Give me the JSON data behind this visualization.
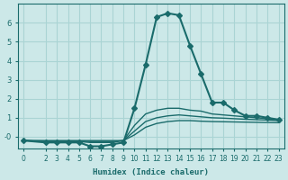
{
  "xlabel": "Humidex (Indice chaleur)",
  "ylabel": "",
  "background_color": "#cce8e8",
  "grid_color": "#aad4d4",
  "line_color": "#1a6b6b",
  "xticks": [
    0,
    2,
    3,
    4,
    5,
    6,
    7,
    8,
    9,
    10,
    11,
    12,
    13,
    14,
    15,
    16,
    17,
    18,
    19,
    20,
    21,
    22,
    23
  ],
  "yticks": [
    0,
    1,
    2,
    3,
    4,
    5,
    6
  ],
  "ytick_labels": [
    "-0",
    "1",
    "2",
    "3",
    "4",
    "5",
    "6"
  ],
  "ylim": [
    -0.6,
    7.0
  ],
  "xlim": [
    -0.5,
    23.5
  ],
  "series": [
    {
      "x": [
        0,
        2,
        3,
        4,
        5,
        6,
        7,
        8,
        9,
        10,
        11,
        12,
        13,
        14,
        15,
        16,
        17,
        18,
        19,
        20,
        21,
        22,
        23
      ],
      "y": [
        -0.2,
        -0.3,
        -0.3,
        -0.3,
        -0.3,
        -0.5,
        -0.5,
        -0.4,
        -0.3,
        1.5,
        3.8,
        6.3,
        6.5,
        6.4,
        4.8,
        3.3,
        1.8,
        1.8,
        1.4,
        1.1,
        1.1,
        1.0,
        0.9
      ],
      "marker": "D",
      "markersize": 3,
      "linewidth": 1.5
    },
    {
      "x": [
        0,
        2,
        3,
        4,
        5,
        6,
        7,
        8,
        9,
        10,
        11,
        12,
        13,
        14,
        15,
        16,
        17,
        18,
        19,
        20,
        21,
        22,
        23
      ],
      "y": [
        -0.2,
        -0.25,
        -0.25,
        -0.25,
        -0.25,
        -0.3,
        -0.3,
        -0.3,
        -0.2,
        0.6,
        1.2,
        1.4,
        1.5,
        1.5,
        1.4,
        1.35,
        1.2,
        1.15,
        1.1,
        1.05,
        1.0,
        0.95,
        0.9
      ],
      "marker": null,
      "markersize": 0,
      "linewidth": 1.0
    },
    {
      "x": [
        0,
        2,
        3,
        4,
        5,
        6,
        7,
        8,
        9,
        10,
        11,
        12,
        13,
        14,
        15,
        16,
        17,
        18,
        19,
        20,
        21,
        22,
        23
      ],
      "y": [
        -0.2,
        -0.22,
        -0.22,
        -0.22,
        -0.22,
        -0.25,
        -0.25,
        -0.25,
        -0.2,
        0.3,
        0.8,
        1.0,
        1.1,
        1.15,
        1.1,
        1.05,
        1.0,
        0.98,
        0.95,
        0.92,
        0.9,
        0.88,
        0.85
      ],
      "marker": null,
      "markersize": 0,
      "linewidth": 1.0
    },
    {
      "x": [
        0,
        2,
        3,
        4,
        5,
        6,
        7,
        8,
        9,
        10,
        11,
        12,
        13,
        14,
        15,
        16,
        17,
        18,
        19,
        20,
        21,
        22,
        23
      ],
      "y": [
        -0.2,
        -0.2,
        -0.2,
        -0.2,
        -0.2,
        -0.2,
        -0.2,
        -0.2,
        -0.2,
        0.1,
        0.5,
        0.7,
        0.8,
        0.85,
        0.85,
        0.82,
        0.8,
        0.79,
        0.78,
        0.77,
        0.76,
        0.75,
        0.74
      ],
      "marker": null,
      "markersize": 0,
      "linewidth": 1.0
    }
  ]
}
